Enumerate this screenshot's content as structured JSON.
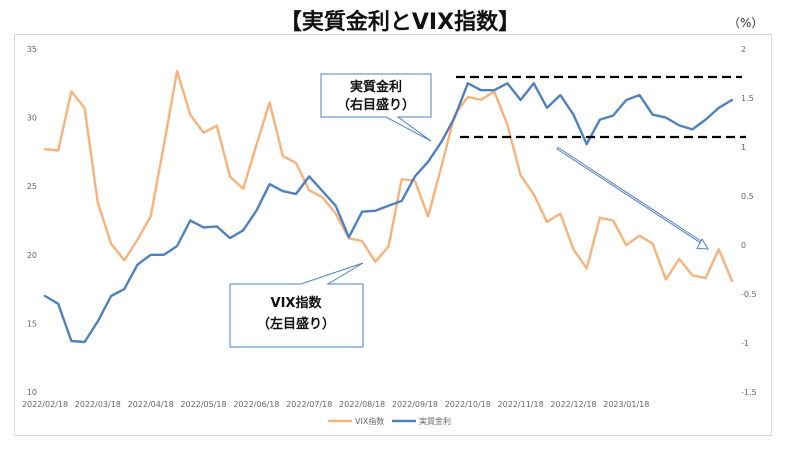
{
  "chart_data": {
    "type": "line",
    "title": "【実質金利とVIX指数】",
    "unit_label": "（%）",
    "x_labels": [
      "2022/02/18",
      "2022/03/18",
      "2022/04/18",
      "2022/05/18",
      "2022/06/18",
      "2022/07/18",
      "2022/08/18",
      "2022/09/18",
      "2022/10/18",
      "2022/11/18",
      "2022/12/18",
      "2023/01/18"
    ],
    "x_label_index": [
      0,
      4,
      8,
      12,
      16,
      20,
      24,
      28,
      32,
      36,
      40,
      44
    ],
    "y_left": {
      "min": 10,
      "max": 35,
      "ticks": [
        "35",
        "30",
        "25",
        "20",
        "15",
        "10"
      ]
    },
    "y_right": {
      "min": -1.5,
      "max": 2,
      "ticks": [
        "2",
        "1.5",
        "1",
        "0.5",
        "0",
        "-0.5",
        "-1",
        "-1.5"
      ]
    },
    "series": [
      {
        "name": "VIX指数",
        "axis": "left",
        "color": "#F8B27C",
        "values": [
          27.7,
          27.6,
          31.9,
          30.7,
          23.8,
          20.8,
          19.6,
          21.1,
          22.8,
          28.0,
          33.4,
          30.2,
          28.9,
          29.4,
          25.7,
          24.8,
          28.0,
          31.1,
          27.2,
          26.7,
          24.7,
          24.2,
          23.0,
          21.2,
          21.0,
          19.5,
          20.6,
          25.5,
          25.4,
          22.8,
          26.4,
          30.2,
          31.5,
          31.3,
          31.9,
          29.5,
          25.8,
          24.4,
          22.4,
          23.0,
          20.4,
          19.0,
          22.7,
          22.5,
          20.7,
          21.4,
          20.8,
          18.2,
          19.7,
          18.5,
          18.3,
          20.4,
          18.1
        ]
      },
      {
        "name": "実質金利",
        "axis": "right",
        "color": "#4F81BD",
        "values": [
          -0.52,
          -0.6,
          -0.98,
          -0.99,
          -0.78,
          -0.52,
          -0.45,
          -0.2,
          -0.1,
          -0.1,
          -0.01,
          0.25,
          0.18,
          0.19,
          0.07,
          0.15,
          0.35,
          0.62,
          0.55,
          0.52,
          0.7,
          0.55,
          0.4,
          0.08,
          0.34,
          0.35,
          0.4,
          0.45,
          0.7,
          0.85,
          1.05,
          1.3,
          1.65,
          1.58,
          1.58,
          1.65,
          1.48,
          1.65,
          1.4,
          1.53,
          1.33,
          1.03,
          1.28,
          1.32,
          1.48,
          1.53,
          1.33,
          1.3,
          1.22,
          1.18,
          1.28,
          1.4,
          1.48
        ]
      }
    ],
    "legend_position": "bottom",
    "grid": false
  },
  "annotations": {
    "real_rate_box": [
      "実質金利",
      "（右目盛り）"
    ],
    "vix_box": [
      "VIX指数",
      "（左目盛り）"
    ]
  }
}
